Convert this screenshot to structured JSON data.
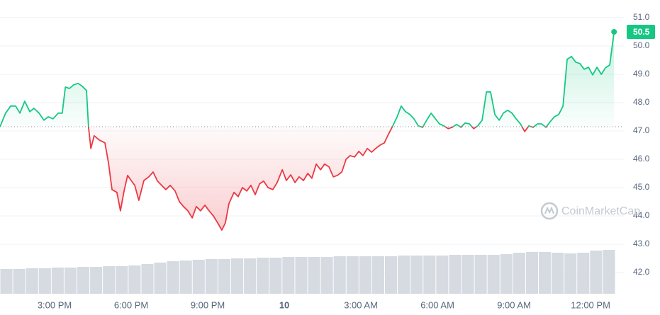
{
  "chart_data": {
    "type": "line",
    "baseline": 47.15,
    "current_price": 50.5,
    "watermark": "CoinMarketCap",
    "ylim": [
      41.25,
      51.625
    ],
    "yticks": [
      {
        "value": 51,
        "label": "51.0"
      },
      {
        "value": 50,
        "label": "50.0"
      },
      {
        "value": 49,
        "label": "49.0"
      },
      {
        "value": 48,
        "label": "48.0"
      },
      {
        "value": 47,
        "label": "47.0"
      },
      {
        "value": 46,
        "label": "46.0"
      },
      {
        "value": 45,
        "label": "45.0"
      },
      {
        "value": 44,
        "label": "44.0"
      },
      {
        "value": 43,
        "label": "43.0"
      },
      {
        "value": 42,
        "label": "42.0"
      }
    ],
    "xlim": [
      12.86,
      36.97
    ],
    "xticks": [
      {
        "value": 15,
        "label": "3:00 PM"
      },
      {
        "value": 18,
        "label": "6:00 PM"
      },
      {
        "value": 21,
        "label": "9:00 PM"
      },
      {
        "value": 24,
        "label": "10"
      },
      {
        "value": 27,
        "label": "3:00 AM"
      },
      {
        "value": 30,
        "label": "6:00 AM"
      },
      {
        "value": 33,
        "label": "9:00 AM"
      },
      {
        "value": 36,
        "label": "12:00 PM"
      }
    ],
    "grid": true,
    "up_color": "#16c784",
    "down_color": "#ea3943",
    "x": [
      12.86,
      13.08,
      13.28,
      13.47,
      13.64,
      13.83,
      14.03,
      14.19,
      14.39,
      14.58,
      14.75,
      14.94,
      15.14,
      15.3,
      15.42,
      15.58,
      15.75,
      15.92,
      16.08,
      16.25,
      16.33,
      16.42,
      16.55,
      16.75,
      16.97,
      17.11,
      17.25,
      17.44,
      17.58,
      17.72,
      17.86,
      18.0,
      18.14,
      18.3,
      18.5,
      18.69,
      18.86,
      19.03,
      19.19,
      19.36,
      19.53,
      19.72,
      19.89,
      20.05,
      20.22,
      20.39,
      20.55,
      20.72,
      20.89,
      21.05,
      21.22,
      21.39,
      21.55,
      21.69,
      21.83,
      22.03,
      22.19,
      22.36,
      22.53,
      22.69,
      22.86,
      23.03,
      23.19,
      23.36,
      23.55,
      23.72,
      23.92,
      24.08,
      24.25,
      24.42,
      24.58,
      24.75,
      24.92,
      25.08,
      25.25,
      25.42,
      25.58,
      25.75,
      25.92,
      26.08,
      26.25,
      26.42,
      26.58,
      26.75,
      26.92,
      27.08,
      27.25,
      27.42,
      27.58,
      27.75,
      27.92,
      28.08,
      28.25,
      28.42,
      28.58,
      28.75,
      28.92,
      29.08,
      29.25,
      29.42,
      29.58,
      29.75,
      29.92,
      30.08,
      30.25,
      30.42,
      30.58,
      30.75,
      30.92,
      31.08,
      31.25,
      31.42,
      31.58,
      31.75,
      31.92,
      32.08,
      32.25,
      32.42,
      32.58,
      32.75,
      32.92,
      33.08,
      33.25,
      33.42,
      33.58,
      33.75,
      33.92,
      34.08,
      34.25,
      34.42,
      34.58,
      34.75,
      34.92,
      35.08,
      35.25,
      35.42,
      35.58,
      35.75,
      35.92,
      36.08,
      36.25,
      36.42,
      36.58,
      36.75,
      36.92
    ],
    "values": [
      47.15,
      47.63,
      47.88,
      47.88,
      47.63,
      48.05,
      47.68,
      47.8,
      47.63,
      47.38,
      47.5,
      47.43,
      47.63,
      47.63,
      48.55,
      48.5,
      48.63,
      48.68,
      48.58,
      48.43,
      47.13,
      46.38,
      46.83,
      46.68,
      46.58,
      45.88,
      44.93,
      44.83,
      44.18,
      44.88,
      45.43,
      45.25,
      45.08,
      44.55,
      45.25,
      45.38,
      45.55,
      45.23,
      45.08,
      44.93,
      45.08,
      44.88,
      44.5,
      44.33,
      44.18,
      43.93,
      44.33,
      44.18,
      44.38,
      44.18,
      44.0,
      43.75,
      43.5,
      43.75,
      44.43,
      44.83,
      44.68,
      45.0,
      44.88,
      45.08,
      44.75,
      45.13,
      45.23,
      45.0,
      44.93,
      45.18,
      45.63,
      45.25,
      45.45,
      45.18,
      45.38,
      45.25,
      45.5,
      45.33,
      45.83,
      45.63,
      45.83,
      45.73,
      45.38,
      45.43,
      45.55,
      46.0,
      46.13,
      46.08,
      46.28,
      46.13,
      46.38,
      46.25,
      46.38,
      46.5,
      46.58,
      46.88,
      47.18,
      47.5,
      47.88,
      47.68,
      47.58,
      47.43,
      47.18,
      47.13,
      47.38,
      47.63,
      47.43,
      47.25,
      47.18,
      47.08,
      47.13,
      47.23,
      47.13,
      47.28,
      47.25,
      47.08,
      47.18,
      47.38,
      48.38,
      48.38,
      47.58,
      47.38,
      47.63,
      47.73,
      47.63,
      47.43,
      47.25,
      46.98,
      47.18,
      47.13,
      47.25,
      47.25,
      47.13,
      47.33,
      47.5,
      47.58,
      47.88,
      49.53,
      49.63,
      49.43,
      49.38,
      49.18,
      49.25,
      48.98,
      49.25,
      49.0,
      49.23,
      49.33,
      50.5
    ],
    "volume": {
      "color": "#d6dae1",
      "lim": [
        0,
        100
      ],
      "values": [
        35,
        35,
        36,
        36,
        37,
        37,
        38,
        38,
        39,
        39,
        40,
        42,
        44,
        46,
        47,
        48,
        49,
        49,
        50,
        50,
        51,
        51,
        52,
        52,
        52,
        52,
        53,
        53,
        53,
        53,
        53,
        54,
        54,
        54,
        54,
        55,
        55,
        55,
        55,
        56,
        58,
        59,
        59,
        58,
        57,
        58,
        61,
        62
      ]
    }
  }
}
